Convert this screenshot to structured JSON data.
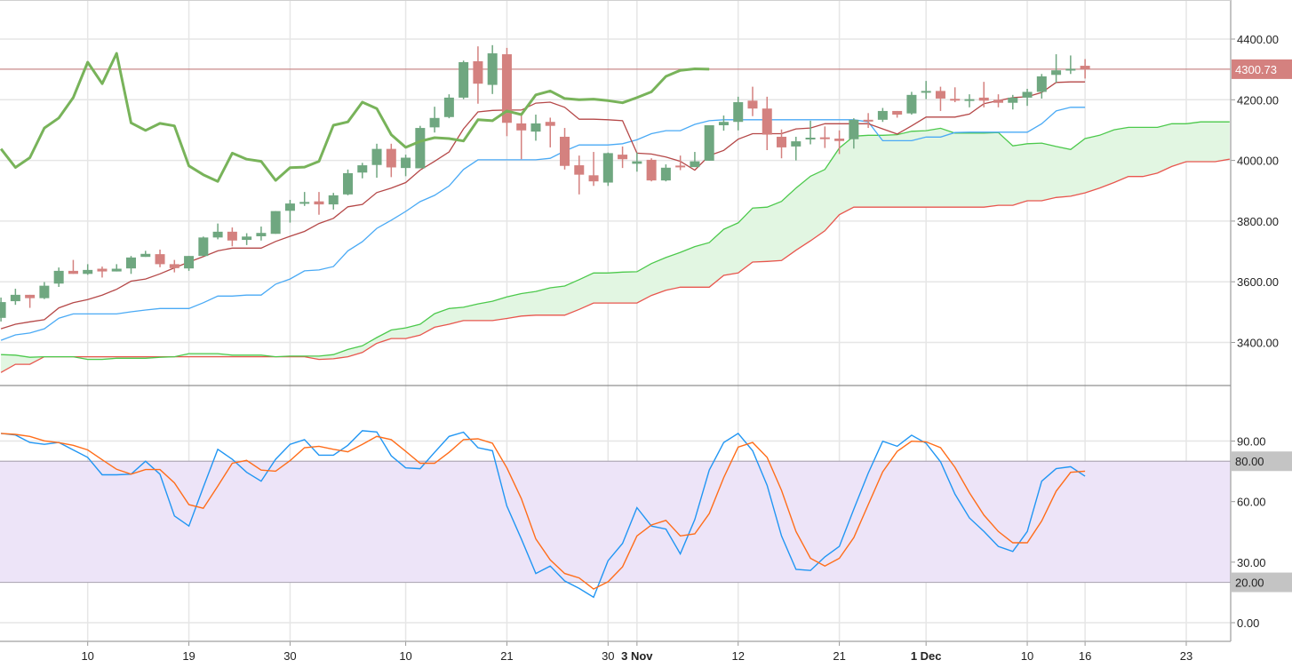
{
  "chart_data": {
    "type": "candlestick",
    "price_axis": {
      "ticks": [
        3400,
        3600,
        3800,
        4000,
        4200,
        4400
      ],
      "tick_labels": [
        "3400.00",
        "3600.00",
        "3800.00",
        "4000.00",
        "4200.00",
        "4400.00"
      ]
    },
    "last_price": {
      "value": 4300.73,
      "label": "4300.73"
    },
    "x_ticks": [
      {
        "index": 6,
        "label": "10"
      },
      {
        "index": 13,
        "label": "19"
      },
      {
        "index": 20,
        "label": "30"
      },
      {
        "index": 28,
        "label": "10"
      },
      {
        "index": 35,
        "label": "21"
      },
      {
        "index": 42,
        "label": "30"
      },
      {
        "index": 44,
        "label": "3 Nov",
        "bold": true
      },
      {
        "index": 51,
        "label": "12"
      },
      {
        "index": 58,
        "label": "21"
      },
      {
        "index": 64,
        "label": "1 Dec",
        "bold": true
      },
      {
        "index": 71,
        "label": "10"
      },
      {
        "index": 75,
        "label": "16"
      },
      {
        "index": 82,
        "label": "23"
      }
    ],
    "candles_ohlc": [
      [
        3481,
        3548,
        3469,
        3533
      ],
      [
        3536,
        3577,
        3524,
        3557
      ],
      [
        3557,
        3557,
        3514,
        3546
      ],
      [
        3546,
        3599,
        3543,
        3587
      ],
      [
        3594,
        3647,
        3583,
        3636
      ],
      [
        3636,
        3672,
        3626,
        3626
      ],
      [
        3626,
        3658,
        3623,
        3639
      ],
      [
        3643,
        3650,
        3614,
        3634
      ],
      [
        3634,
        3658,
        3634,
        3643
      ],
      [
        3644,
        3685,
        3626,
        3680
      ],
      [
        3682,
        3702,
        3682,
        3692
      ],
      [
        3691,
        3706,
        3648,
        3658
      ],
      [
        3658,
        3672,
        3631,
        3645
      ],
      [
        3644,
        3685,
        3636,
        3685
      ],
      [
        3685,
        3749,
        3685,
        3746
      ],
      [
        3746,
        3792,
        3740,
        3765
      ],
      [
        3765,
        3779,
        3717,
        3736
      ],
      [
        3738,
        3760,
        3721,
        3749
      ],
      [
        3750,
        3782,
        3736,
        3761
      ],
      [
        3758,
        3833,
        3758,
        3833
      ],
      [
        3834,
        3870,
        3795,
        3858
      ],
      [
        3858,
        3896,
        3850,
        3863
      ],
      [
        3865,
        3896,
        3821,
        3855
      ],
      [
        3855,
        3893,
        3838,
        3885
      ],
      [
        3888,
        3970,
        3885,
        3958
      ],
      [
        3960,
        3992,
        3941,
        3984
      ],
      [
        3985,
        4055,
        3943,
        4038
      ],
      [
        4038,
        4055,
        3945,
        3977
      ],
      [
        3975,
        4019,
        3948,
        4009
      ],
      [
        3974,
        4114,
        3974,
        4107
      ],
      [
        4109,
        4177,
        4092,
        4140
      ],
      [
        4143,
        4218,
        4139,
        4207
      ],
      [
        4207,
        4329,
        4202,
        4324
      ],
      [
        4327,
        4376,
        4187,
        4253
      ],
      [
        4249,
        4380,
        4219,
        4353
      ],
      [
        4350,
        4371,
        4080,
        4124
      ],
      [
        4122,
        4150,
        4004,
        4099
      ],
      [
        4095,
        4151,
        4065,
        4122
      ],
      [
        4127,
        4141,
        4043,
        4114
      ],
      [
        4078,
        4107,
        3970,
        3982
      ],
      [
        3984,
        4016,
        3888,
        3953
      ],
      [
        3951,
        4028,
        3916,
        3931
      ],
      [
        3927,
        4026,
        3916,
        4024
      ],
      [
        4019,
        4046,
        3975,
        4004
      ],
      [
        3989,
        4026,
        3963,
        3997
      ],
      [
        4002,
        4007,
        3931,
        3934
      ],
      [
        3934,
        3987,
        3931,
        3976
      ],
      [
        3983,
        4016,
        3968,
        3978
      ],
      [
        3978,
        4028,
        3978,
        3997
      ],
      [
        3999,
        4116,
        3999,
        4116
      ],
      [
        4116,
        4148,
        4098,
        4127
      ],
      [
        4127,
        4210,
        4099,
        4192
      ],
      [
        4197,
        4243,
        4146,
        4171
      ],
      [
        4171,
        4210,
        4034,
        4085
      ],
      [
        4078,
        4102,
        4007,
        4043
      ],
      [
        4046,
        4078,
        4000,
        4063
      ],
      [
        4070,
        4131,
        4053,
        4075
      ],
      [
        4076,
        4112,
        4041,
        4072
      ],
      [
        4072,
        4099,
        4021,
        4064
      ],
      [
        4070,
        4139,
        4039,
        4134
      ],
      [
        4134,
        4156,
        4107,
        4131
      ],
      [
        4134,
        4173,
        4127,
        4163
      ],
      [
        4163,
        4163,
        4141,
        4151
      ],
      [
        4155,
        4226,
        4151,
        4216
      ],
      [
        4224,
        4262,
        4202,
        4229
      ],
      [
        4229,
        4243,
        4163,
        4204
      ],
      [
        4203,
        4241,
        4192,
        4200
      ],
      [
        4199,
        4218,
        4175,
        4202
      ],
      [
        4207,
        4259,
        4175,
        4197
      ],
      [
        4200,
        4218,
        4175,
        4190
      ],
      [
        4190,
        4216,
        4168,
        4207
      ],
      [
        4207,
        4236,
        4180,
        4226
      ],
      [
        4226,
        4285,
        4204,
        4277
      ],
      [
        4282,
        4350,
        4256,
        4297
      ],
      [
        4299,
        4346,
        4285,
        4302
      ],
      [
        4312,
        4334,
        4270,
        4300.73
      ]
    ],
    "ichimoku": {
      "tenkan": [
        3445,
        3460,
        3468,
        3475,
        3514,
        3531,
        3541,
        3556,
        3575,
        3602,
        3609,
        3626,
        3646,
        3665,
        3683,
        3702,
        3711,
        3711,
        3711,
        3733,
        3750,
        3766,
        3792,
        3809,
        3847,
        3855,
        3894,
        3909,
        3927,
        3968,
        3997,
        4028,
        4104,
        4160,
        4165,
        4166,
        4166,
        4189,
        4192,
        4175,
        4136,
        4136,
        4134,
        4131,
        4024,
        4021,
        4011,
        3997,
        3968,
        4016,
        4033,
        4070,
        4088,
        4088,
        4088,
        4104,
        4107,
        4121,
        4121,
        4121,
        4121,
        4104,
        4087,
        4114,
        4143,
        4143,
        4143,
        4153,
        4187,
        4197,
        4207,
        4210,
        4224,
        4257,
        4259,
        4259
      ],
      "kijun": [
        3407,
        3425,
        3431,
        3445,
        3480,
        3494,
        3494,
        3494,
        3494,
        3501,
        3507,
        3512,
        3512,
        3512,
        3531,
        3553,
        3553,
        3556,
        3556,
        3592,
        3609,
        3636,
        3639,
        3650,
        3702,
        3732,
        3776,
        3803,
        3832,
        3864,
        3885,
        3916,
        3970,
        4002,
        4002,
        4002,
        4002,
        4002,
        4007,
        4031,
        4051,
        4051,
        4051,
        4055,
        4068,
        4088,
        4098,
        4098,
        4119,
        4131,
        4134,
        4134,
        4134,
        4134,
        4134,
        4134,
        4134,
        4134,
        4134,
        4134,
        4127,
        4065,
        4065,
        4065,
        4077,
        4077,
        4092,
        4093,
        4093,
        4093,
        4093,
        4093,
        4121,
        4163,
        4175,
        4175
      ],
      "senkou_a": [
        3360,
        3358,
        3351,
        3353,
        3353,
        3353,
        3344,
        3344,
        3348,
        3348,
        3348,
        3351,
        3353,
        3363,
        3363,
        3363,
        3358,
        3358,
        3358,
        3353,
        3355,
        3355,
        3355,
        3360,
        3377,
        3389,
        3416,
        3441,
        3448,
        3460,
        3495,
        3512,
        3516,
        3527,
        3536,
        3550,
        3561,
        3568,
        3580,
        3586,
        3607,
        3629,
        3629,
        3632,
        3633,
        3660,
        3680,
        3697,
        3716,
        3729,
        3773,
        3794,
        3843,
        3846,
        3865,
        3909,
        3948,
        3970,
        4041,
        4080,
        4083,
        4083,
        4085,
        4096,
        4098,
        4106,
        4090,
        4090,
        4090,
        4092,
        4048,
        4055,
        4057,
        4046,
        4036,
        4072,
        4083,
        4101,
        4109,
        4109,
        4109,
        4121,
        4121,
        4127,
        4127,
        4127
      ],
      "senkou_b": [
        3301,
        3328,
        3328,
        3353,
        3353,
        3353,
        3353,
        3353,
        3353,
        3353,
        3353,
        3353,
        3353,
        3353,
        3353,
        3353,
        3353,
        3353,
        3353,
        3353,
        3353,
        3353,
        3344,
        3346,
        3353,
        3367,
        3397,
        3413,
        3413,
        3424,
        3450,
        3460,
        3472,
        3472,
        3472,
        3479,
        3487,
        3490,
        3490,
        3490,
        3509,
        3530,
        3530,
        3530,
        3530,
        3555,
        3572,
        3582,
        3582,
        3582,
        3621,
        3629,
        3665,
        3667,
        3670,
        3704,
        3735,
        3768,
        3821,
        3846,
        3846,
        3846,
        3846,
        3846,
        3846,
        3846,
        3846,
        3846,
        3846,
        3852,
        3852,
        3867,
        3867,
        3878,
        3882,
        3893,
        3909,
        3927,
        3947,
        3947,
        3958,
        3980,
        3996,
        3996,
        3996,
        4004
      ],
      "chikou_shift": 26
    },
    "stochastic": {
      "axis_ticks": [
        0,
        30,
        60,
        90
      ],
      "axis_tick_labels": [
        "0.00",
        "30.00",
        "60.00",
        "90.00"
      ],
      "band": {
        "upper": 80,
        "lower": 20,
        "upper_label": "80.00",
        "lower_label": "20.00"
      },
      "k": [
        93.8,
        93.0,
        89.3,
        88.4,
        89.3,
        85.6,
        81.9,
        73.3,
        73.3,
        73.6,
        80.0,
        73.6,
        52.9,
        47.9,
        67.1,
        85.9,
        81.0,
        74.5,
        70.1,
        81.0,
        88.4,
        90.7,
        83.0,
        83.0,
        87.9,
        95.1,
        94.5,
        82.7,
        76.7,
        76.3,
        84.4,
        92.3,
        94.4,
        86.7,
        85.2,
        57.8,
        41.5,
        24.4,
        28.1,
        20.7,
        17.0,
        12.6,
        30.7,
        39.3,
        57.0,
        47.9,
        46.4,
        34.1,
        51.1,
        75.6,
        89.3,
        93.8,
        85.2,
        68.1,
        43.0,
        26.4,
        25.9,
        32.6,
        37.8,
        56.3,
        74.1,
        89.9,
        87.4,
        92.9,
        88.9,
        79.7,
        63.7,
        51.9,
        45.2,
        37.8,
        35.3,
        45.2,
        70.1,
        76.3,
        77.3,
        72.6
      ],
      "d": [
        93.8,
        93.3,
        92.3,
        90.1,
        89.2,
        87.9,
        85.6,
        80.7,
        76.0,
        73.6,
        75.9,
        75.9,
        69.3,
        58.5,
        56.7,
        67.7,
        79.0,
        80.4,
        75.6,
        75.1,
        80.3,
        86.7,
        87.4,
        85.9,
        84.7,
        88.4,
        92.3,
        90.7,
        84.9,
        79.0,
        79.0,
        84.4,
        90.7,
        91.1,
        88.9,
        76.7,
        61.5,
        41.5,
        31.1,
        24.4,
        22.2,
        16.7,
        20.3,
        27.7,
        43.0,
        48.4,
        50.7,
        43.0,
        44.0,
        54.1,
        71.9,
        87.0,
        89.3,
        81.9,
        65.6,
        45.2,
        31.9,
        28.1,
        31.9,
        42.2,
        58.5,
        74.8,
        84.9,
        89.9,
        89.6,
        86.7,
        77.0,
        64.4,
        53.3,
        45.2,
        39.6,
        39.6,
        50.4,
        65.2,
        74.5,
        75.1
      ]
    },
    "colors": {
      "up": "#6fa780",
      "down": "#d4817f",
      "tenkan": "#b54848",
      "kijun": "#4aaaf5",
      "chikou": "#78b35a",
      "senkou_a": "#4cc94c",
      "senkou_b": "#e8564e",
      "cloud": "#e2f6e2",
      "last_price": "#d4817f",
      "stoch_k": "#2196f3",
      "stoch_d": "#ff6d1a",
      "stoch_band": "#ede4f8",
      "grid": "#e6e6e6"
    },
    "grid": true
  }
}
